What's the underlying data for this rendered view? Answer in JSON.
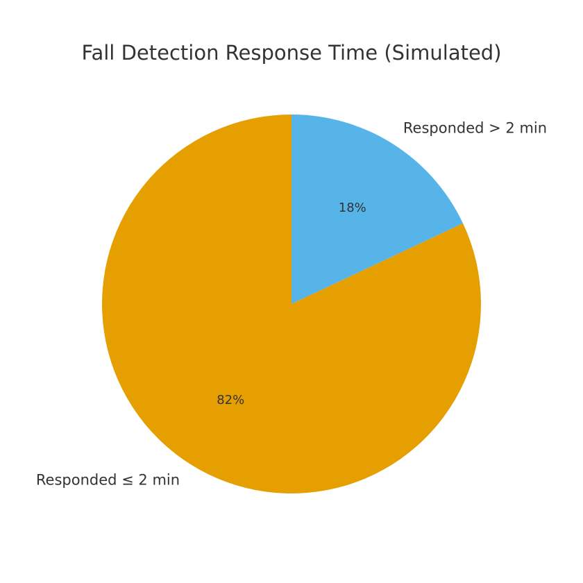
{
  "chart_data": {
    "type": "pie",
    "title": "Fall Detection Response Time (Simulated)",
    "start_angle_deg": 90,
    "direction": "clockwise",
    "slices": [
      {
        "label": "Responded > 2 min",
        "value": 18,
        "pct_label": "18%",
        "color": "#56B4E9"
      },
      {
        "label": "Responded ≤ 2 min",
        "value": 82,
        "pct_label": "82%",
        "color": "#E69F00"
      }
    ]
  }
}
